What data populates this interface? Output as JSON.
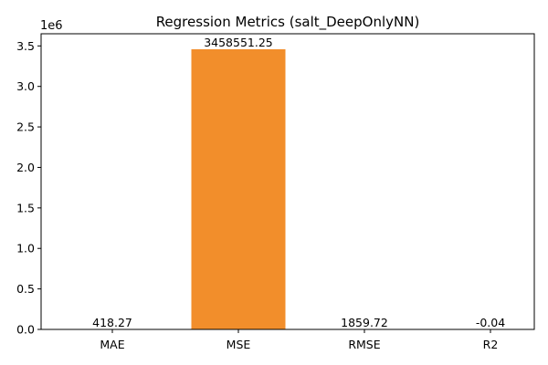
{
  "chart_data": {
    "type": "bar",
    "title": "Regression Metrics (salt_DeepOnlyNN)",
    "xlabel": "",
    "ylabel": "",
    "categories": [
      "MAE",
      "MSE",
      "RMSE",
      "R2"
    ],
    "values": [
      418.27,
      3458551.25,
      1859.72,
      -0.04
    ],
    "data_labels": [
      "418.27",
      "3458551.25",
      "1859.72",
      "-0.04"
    ],
    "ylim": [
      -2e-06,
      3650000
    ],
    "y_scale_label": "1e6",
    "y_ticks": [
      {
        "value": 0,
        "label": "0.0"
      },
      {
        "value": 500000,
        "label": "0.5"
      },
      {
        "value": 1000000,
        "label": "1.0"
      },
      {
        "value": 1500000,
        "label": "1.5"
      },
      {
        "value": 2000000,
        "label": "2.0"
      },
      {
        "value": 2500000,
        "label": "2.5"
      },
      {
        "value": 3000000,
        "label": "3.0"
      },
      {
        "value": 3500000,
        "label": "3.5"
      }
    ],
    "grid": false,
    "legend": "none",
    "bar_colors": [
      "#4c72b0",
      "#f28e2b",
      "#6aa84f",
      "#c44e52"
    ]
  }
}
